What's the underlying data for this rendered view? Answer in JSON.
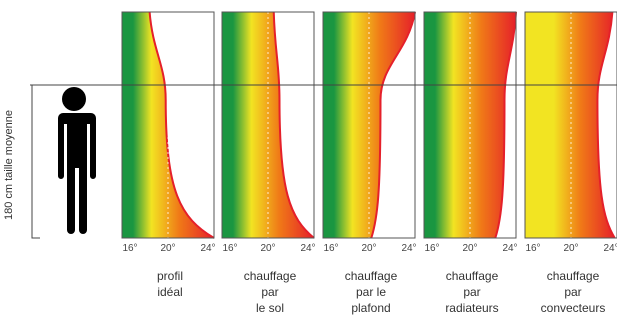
{
  "height_label": "180 cm taille moyenne",
  "temperature_ticks": [
    "16°",
    "20°",
    "24°"
  ],
  "colors": {
    "cold": "#1a9641",
    "mid": "#f2e422",
    "warm": "#f07a17",
    "hot": "#e5202a",
    "frame": "#555555",
    "person": "#000000"
  },
  "icons": [
    "person-silhouette-icon"
  ],
  "chart_data": {
    "type": "area",
    "x_axis": {
      "unit": "°C",
      "range": [
        16,
        24
      ],
      "tick_labels": [
        "16°",
        "20°",
        "24°"
      ]
    },
    "y_axis": {
      "label": "180 cm taille moyenne",
      "reference_mark": "180 cm"
    },
    "profiles": [
      {
        "caption": [
          "profil",
          "idéal"
        ],
        "gradient_start_temp": 16,
        "ceiling_temp": 18.4,
        "head_height_temp": 19.8,
        "floor_temp": 24
      },
      {
        "caption": [
          "chauffage",
          "par",
          "le sol"
        ],
        "gradient_start_temp": 16,
        "ceiling_temp": 20.5,
        "head_height_temp": 21.0,
        "floor_temp": 24
      },
      {
        "caption": [
          "chauffage",
          "par le",
          "plafond"
        ],
        "gradient_start_temp": 16,
        "ceiling_temp": 24,
        "head_height_temp": 21.0,
        "floor_temp": 20.2
      },
      {
        "caption": [
          "chauffage",
          "par",
          "radiateurs"
        ],
        "gradient_start_temp": 16,
        "ceiling_temp": 24,
        "head_height_temp": 23.0,
        "floor_temp": 22.2
      },
      {
        "caption": [
          "chauffage",
          "par",
          "convecteurs"
        ],
        "gradient_start_temp": 17,
        "ceiling_temp": 23.6,
        "head_height_temp": 22.3,
        "floor_temp": 23.8
      }
    ]
  }
}
